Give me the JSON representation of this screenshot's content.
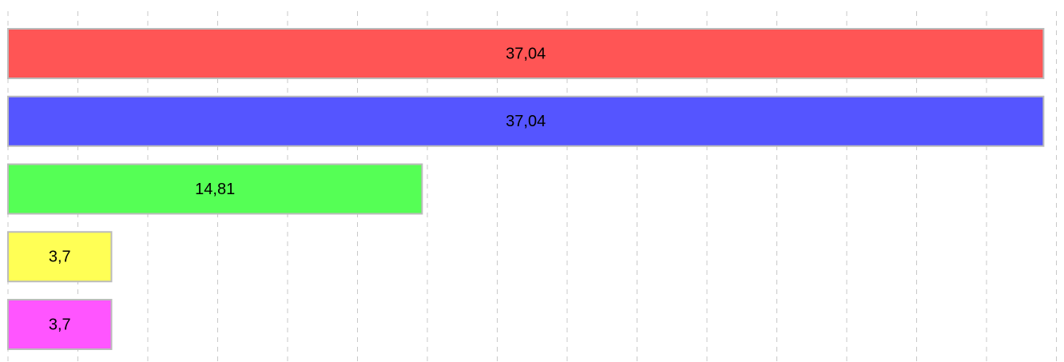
{
  "chart_data": {
    "type": "barh",
    "categories": [
      null,
      null,
      null,
      null,
      null
    ],
    "values": [
      37.04,
      37.04,
      14.81,
      3.7,
      3.7
    ],
    "value_labels": [
      "37,04",
      "37,04",
      "14,81",
      "3,7",
      "3,7"
    ],
    "colors": [
      "#ff5555",
      "#5555ff",
      "#55ff55",
      "#ffff55",
      "#ff55ff"
    ],
    "xlim": [
      0,
      37.5
    ],
    "xticks": [
      0,
      2.5,
      5,
      7.5,
      10,
      12.5,
      15,
      17.5,
      20,
      22.5,
      25,
      27.5,
      30,
      32.5,
      35,
      37.5
    ],
    "grid": true
  }
}
